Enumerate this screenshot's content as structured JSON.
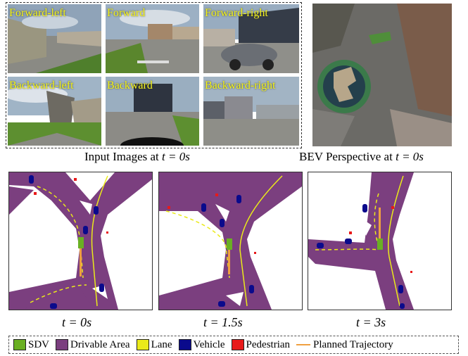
{
  "camera_views": [
    {
      "label": "Forward-left"
    },
    {
      "label": "Forward"
    },
    {
      "label": "Forward-right"
    },
    {
      "label": "Backward-left"
    },
    {
      "label": "Backward"
    },
    {
      "label": "Backward-right"
    }
  ],
  "captions": {
    "input_images": {
      "prefix": "Input Images at ",
      "var": "t",
      "value": " = 0s"
    },
    "bev_perspective": {
      "prefix": "BEV Perspective at ",
      "var": "t",
      "value": " = 0s"
    },
    "timesteps": [
      {
        "var": "t",
        "value": " = 0s"
      },
      {
        "var": "t",
        "value": " = 1.5s"
      },
      {
        "var": "t",
        "value": " = 3s"
      }
    ]
  },
  "legend": [
    {
      "label": "SDV",
      "color": "#6ab023",
      "kind": "box"
    },
    {
      "label": "Drivable Area",
      "color": "#7b3f7f",
      "kind": "box"
    },
    {
      "label": "Lane",
      "color": "#eaea1a",
      "kind": "box"
    },
    {
      "label": "Vehicle",
      "color": "#0a0a8c",
      "kind": "box"
    },
    {
      "label": "Pedestrian",
      "color": "#e81a1a",
      "kind": "box"
    },
    {
      "label": "Planned Trajectory",
      "color": "#f0a040",
      "kind": "line"
    }
  ],
  "colors": {
    "drivable": "#7b3f7f",
    "lane": "#eaea1a",
    "vehicle": "#0a0a8c",
    "sdv": "#6ab023",
    "pedestrian": "#e81a1a",
    "camera_label": "#f5f51a"
  }
}
